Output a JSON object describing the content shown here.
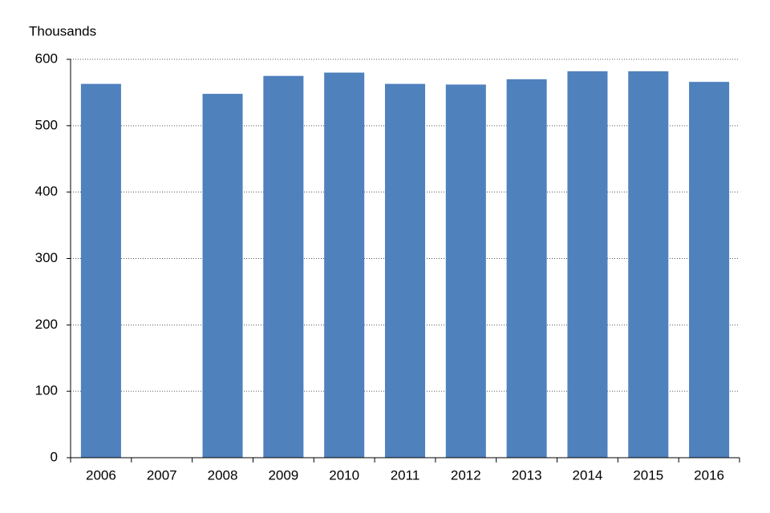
{
  "chart_data": {
    "type": "bar",
    "y_label": "Thousands",
    "categories": [
      "2006",
      "2007",
      "2008",
      "2009",
      "2010",
      "2011",
      "2012",
      "2013",
      "2014",
      "2015",
      "2016"
    ],
    "values": [
      563,
      null,
      548,
      575,
      580,
      563,
      562,
      570,
      582,
      582,
      566
    ],
    "color": "#4f81bd",
    "ylim": [
      0,
      600
    ],
    "yticks": [
      0,
      100,
      200,
      300,
      400,
      500,
      600
    ],
    "grid": true
  }
}
